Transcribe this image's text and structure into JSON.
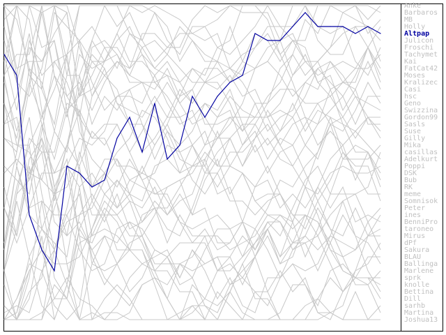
{
  "chart_data": {
    "type": "line",
    "title": "",
    "xlabel": "",
    "ylabel": "",
    "y_axis": "rank (1 at top)",
    "ylim": [
      1,
      47
    ],
    "x": [
      1,
      2,
      3,
      4,
      5,
      6,
      7,
      8,
      9,
      10,
      11,
      12,
      13,
      14,
      15,
      16,
      17,
      18,
      19,
      20,
      21,
      22,
      23,
      24,
      25,
      26,
      27,
      28,
      29,
      30,
      31
    ],
    "grid": false,
    "legend_placement": "right",
    "legend": [
      "Anke",
      "Barbaros",
      "MB",
      "Holly",
      "Altpap",
      "Julicon",
      "Froschi",
      "Tachymet",
      "Kai",
      "FatCat42",
      "Moses",
      "Kralizec",
      "Casi",
      "hsc",
      "Geno",
      "Swizzina",
      "Gordon99",
      "Sasls",
      "Suse",
      "Gilly",
      "Mika",
      "casillas",
      "Adelkurt",
      "Poppi",
      "DSK",
      "Bub",
      "RK",
      "meme",
      "Somnisok",
      "Peter",
      "ines",
      "BenniPro",
      "taroneo",
      "Mirus",
      "dPf",
      "Sakura",
      "BLAU",
      "Ballinga",
      "Marlene",
      "sprk",
      "knolle",
      "Bettina",
      "Dill",
      "sarhb",
      "Martina",
      "Joshua13"
    ],
    "highlighted": "Altpap",
    "series": [
      {
        "name": "Altpap",
        "color": "#0000a0",
        "values": [
          8,
          11,
          31,
          36,
          39,
          24,
          25,
          27,
          26,
          20,
          17,
          22,
          15,
          23,
          21,
          14,
          17,
          14,
          12,
          11,
          5,
          6,
          6,
          4,
          2,
          4,
          4,
          4,
          5,
          4,
          5
        ]
      }
    ],
    "other_series_color": "#c8c8c8"
  }
}
